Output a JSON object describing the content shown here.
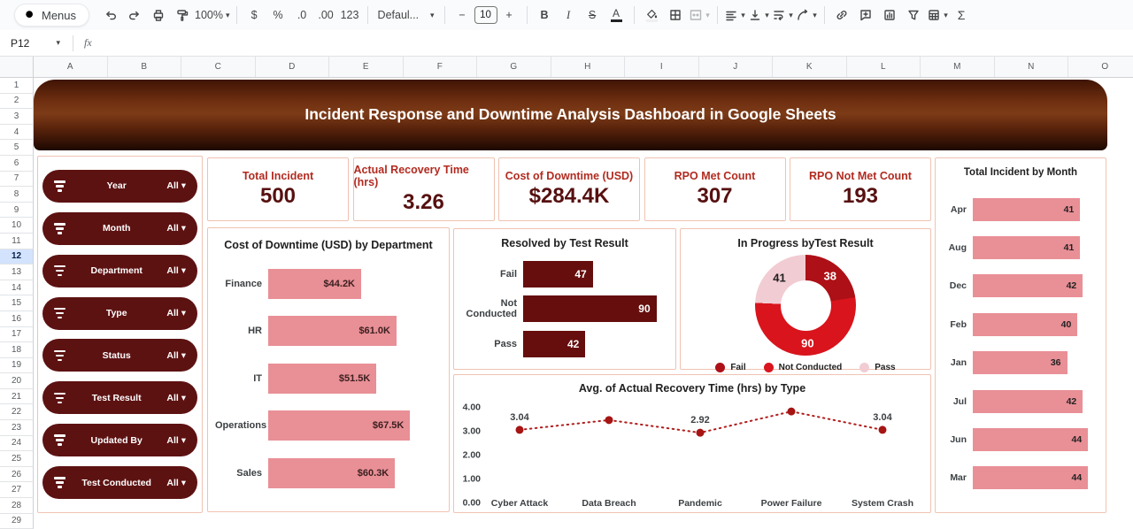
{
  "toolbar": {
    "menus_label": "Menus",
    "zoom_value": "100%",
    "format_items": [
      "$",
      "%",
      ".0",
      ".00",
      "123"
    ],
    "font_name": "Defaul...",
    "font_size": "10",
    "bold": "B",
    "italic": "I",
    "strikethrough": "S",
    "text_color": "A",
    "sigma": "Σ"
  },
  "formula_bar": {
    "name_box": "P12",
    "fx_label": "fx"
  },
  "grid": {
    "columns": [
      "A",
      "B",
      "C",
      "D",
      "E",
      "F",
      "G",
      "H",
      "I",
      "J",
      "K",
      "L",
      "M",
      "N",
      "O"
    ],
    "row_count": 29,
    "highlighted_row": 12
  },
  "dashboard": {
    "title": "Incident Response and Downtime Analysis Dashboard in Google Sheets",
    "filters": [
      {
        "label": "Year",
        "value": "All"
      },
      {
        "label": "Month",
        "value": "All"
      },
      {
        "label": "Department",
        "value": "All"
      },
      {
        "label": "Type",
        "value": "All"
      },
      {
        "label": "Status",
        "value": "All"
      },
      {
        "label": "Test Result",
        "value": "All"
      },
      {
        "label": "Updated By",
        "value": "All"
      },
      {
        "label": "Test Conducted",
        "value": "All"
      }
    ],
    "kpis": [
      {
        "label": "Total Incident",
        "value": "500"
      },
      {
        "label": "Actual Recovery Time (hrs)",
        "value": "3.26"
      },
      {
        "label": "Cost of Downtime (USD)",
        "value": "$284.4K"
      },
      {
        "label": "RPO Met Count",
        "value": "307"
      },
      {
        "label": "RPO Not Met Count",
        "value": "193"
      }
    ],
    "colors": {
      "maroon_pill": "#5d1212",
      "kpi_label_red": "#b22b20",
      "kpi_value_maroon": "#571010",
      "panel_border": "#f0c3b2",
      "pink_bar": "#e98f96",
      "dark_bar": "#660d0d",
      "donut_fail": "#ad1016",
      "donut_not_conducted": "#d9141c",
      "donut_pass": "#f2ccd3",
      "line_red": "#a61414"
    }
  },
  "chart_data": [
    {
      "type": "bar",
      "orientation": "horizontal",
      "title": "Cost of Downtime (USD) by Department",
      "categories": [
        "Finance",
        "HR",
        "IT",
        "Operations",
        "Sales"
      ],
      "values": [
        44.2,
        61.0,
        51.5,
        67.5,
        60.3
      ],
      "value_labels": [
        "$44.2K",
        "$61.0K",
        "$51.5K",
        "$67.5K",
        "$60.3K"
      ],
      "bar_color": "#e98f96",
      "value_label_color": "#3b2020",
      "xlim": [
        0,
        67.5
      ]
    },
    {
      "type": "bar",
      "orientation": "horizontal",
      "title": "Resolved by Test Result",
      "categories": [
        "Fail",
        "Not Conducted",
        "Pass"
      ],
      "values": [
        47,
        90,
        42
      ],
      "value_labels": [
        "47",
        "90",
        "42"
      ],
      "bar_color": "#660d0d",
      "value_label_color": "#ffffff",
      "xlim": [
        0,
        90
      ]
    },
    {
      "type": "pie",
      "title": "In Progress byTest Result",
      "labels": [
        "Fail",
        "Not Conducted",
        "Pass"
      ],
      "values": [
        38,
        90,
        41
      ],
      "colors": [
        "#ad1016",
        "#d9141c",
        "#f2ccd3"
      ],
      "slice_label_colors": [
        "#ffffff",
        "#ffffff",
        "#1f1f1f"
      ],
      "donut": true,
      "legend_position": "bottom"
    },
    {
      "type": "line",
      "title": "Avg. of Actual Recovery Time (hrs) by Type",
      "x": [
        "Cyber Attack",
        "Data Breach",
        "Pandemic",
        "Power Failure",
        "System Crash"
      ],
      "values": [
        3.04,
        3.45,
        2.92,
        3.81,
        3.04
      ],
      "point_labels": [
        "3.04",
        "",
        "2.92",
        "",
        "3.04"
      ],
      "ylim": [
        0,
        4
      ],
      "yticks": [
        "4.00",
        "3.00",
        "2.00",
        "1.00",
        "0.00"
      ],
      "line_style": "dotted",
      "line_color": "#b11c1c",
      "marker_color": "#a61414"
    },
    {
      "type": "bar",
      "orientation": "horizontal",
      "title": "Total Incident by Month",
      "categories": [
        "Apr",
        "Aug",
        "Dec",
        "Feb",
        "Jan",
        "Jul",
        "Jun",
        "Mar"
      ],
      "values": [
        41,
        41,
        42,
        40,
        36,
        42,
        44,
        44
      ],
      "value_labels": [
        "41",
        "41",
        "42",
        "40",
        "36",
        "42",
        "44",
        "44"
      ],
      "bar_color": "#e98f96",
      "value_label_color": "#222222",
      "xlim": [
        0,
        44
      ]
    }
  ]
}
